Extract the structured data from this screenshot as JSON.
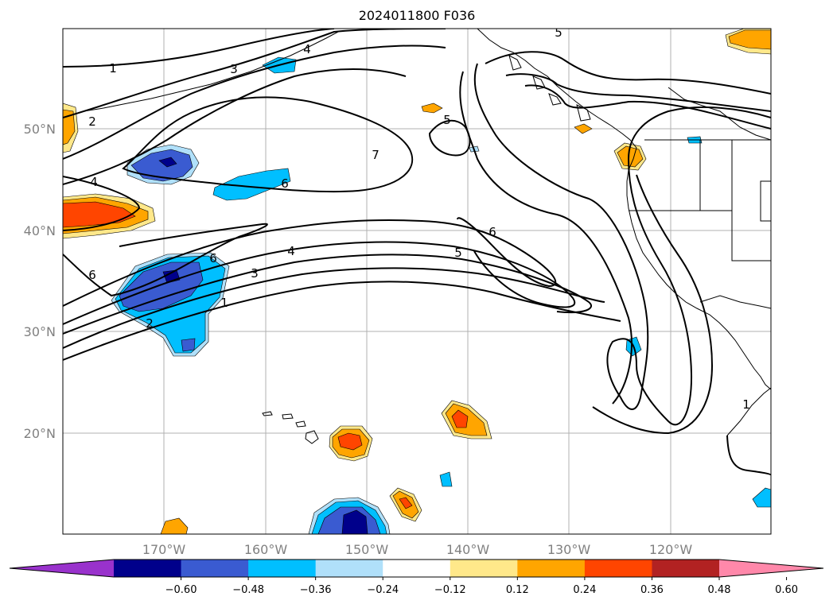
{
  "map": {
    "title": "2024011800 F036",
    "lat_labels": [
      "50°N",
      "40°N",
      "30°N",
      "20°N"
    ],
    "lon_labels": [
      "170°W",
      "160°W",
      "150°W",
      "140°W",
      "130°W",
      "120°W"
    ],
    "contour_labels": [
      "1",
      "2",
      "3",
      "4",
      "5",
      "6",
      "7"
    ],
    "colorbar": {
      "labels": [
        "−0.60",
        "−0.48",
        "−0.36",
        "−0.24",
        "−0.12",
        "0.12",
        "0.24",
        "0.36",
        "0.48",
        "0.60"
      ],
      "colors": [
        "#9932cc",
        "#00008b",
        "#3a5bd1",
        "#00bfff",
        "#b0e0fa",
        "#ffffff",
        "#ffe88a",
        "#ffa500",
        "#ff4500",
        "#b22222",
        "#ff88aa"
      ]
    }
  }
}
